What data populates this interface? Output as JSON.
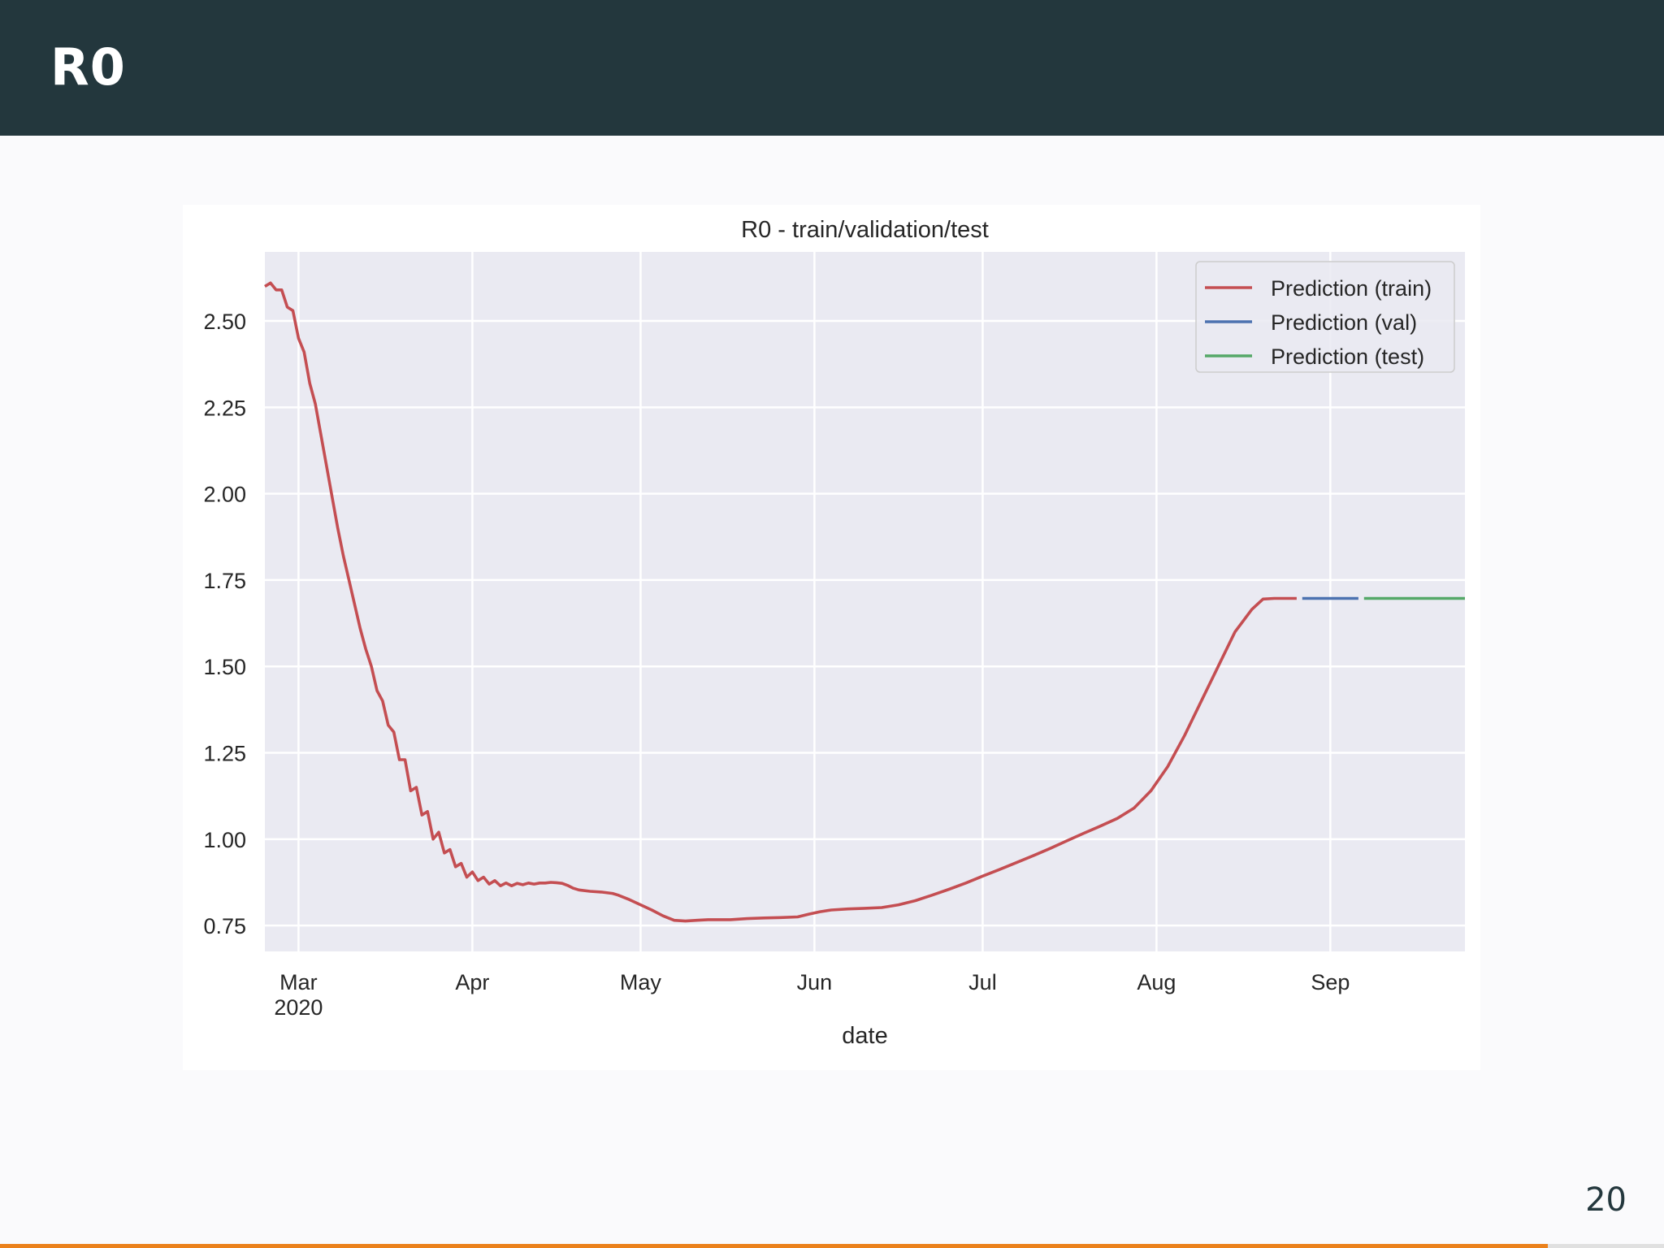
{
  "slide": {
    "title": "R0",
    "page_number": "20",
    "progress_fraction": 0.93
  },
  "colors": {
    "header_bg": "#23373d",
    "plot_bg": "#eaeaf2",
    "grid": "#ffffff",
    "train": "#c44e52",
    "val": "#4c72b0",
    "test": "#55a868",
    "accent": "#eb811b"
  },
  "chart_data": {
    "type": "line",
    "title": "R0 - train/validation/test",
    "xlabel": "date",
    "ylabel": "",
    "x_is_date": true,
    "xlim": [
      "2020-02-24",
      "2020-09-25"
    ],
    "ylim": [
      0.675,
      2.7
    ],
    "yticks": [
      0.75,
      1.0,
      1.25,
      1.5,
      1.75,
      2.0,
      2.25,
      2.5
    ],
    "ytick_labels": [
      "0.75",
      "1.00",
      "1.25",
      "1.50",
      "1.75",
      "2.00",
      "2.25",
      "2.50"
    ],
    "xticks": [
      {
        "date": "2020-03-01",
        "label": "Mar",
        "sublabel": "2020"
      },
      {
        "date": "2020-04-01",
        "label": "Apr",
        "sublabel": ""
      },
      {
        "date": "2020-05-01",
        "label": "May",
        "sublabel": ""
      },
      {
        "date": "2020-06-01",
        "label": "Jun",
        "sublabel": ""
      },
      {
        "date": "2020-07-01",
        "label": "Jul",
        "sublabel": ""
      },
      {
        "date": "2020-08-01",
        "label": "Aug",
        "sublabel": ""
      },
      {
        "date": "2020-09-01",
        "label": "Sep",
        "sublabel": ""
      }
    ],
    "grid": true,
    "legend_position": "top-right",
    "series": [
      {
        "name": "Prediction (train)",
        "color": "#c44e52",
        "points": [
          [
            "2020-02-24",
            2.6
          ],
          [
            "2020-02-25",
            2.61
          ],
          [
            "2020-02-26",
            2.59
          ],
          [
            "2020-02-27",
            2.59
          ],
          [
            "2020-02-28",
            2.54
          ],
          [
            "2020-02-29",
            2.53
          ],
          [
            "2020-03-01",
            2.45
          ],
          [
            "2020-03-02",
            2.41
          ],
          [
            "2020-03-03",
            2.32
          ],
          [
            "2020-03-04",
            2.26
          ],
          [
            "2020-03-05",
            2.17
          ],
          [
            "2020-03-06",
            2.08
          ],
          [
            "2020-03-07",
            1.99
          ],
          [
            "2020-03-08",
            1.9
          ],
          [
            "2020-03-09",
            1.82
          ],
          [
            "2020-03-10",
            1.75
          ],
          [
            "2020-03-11",
            1.68
          ],
          [
            "2020-03-12",
            1.61
          ],
          [
            "2020-03-13",
            1.55
          ],
          [
            "2020-03-14",
            1.5
          ],
          [
            "2020-03-15",
            1.43
          ],
          [
            "2020-03-16",
            1.4
          ],
          [
            "2020-03-17",
            1.33
          ],
          [
            "2020-03-18",
            1.31
          ],
          [
            "2020-03-19",
            1.23
          ],
          [
            "2020-03-20",
            1.23
          ],
          [
            "2020-03-21",
            1.14
          ],
          [
            "2020-03-22",
            1.15
          ],
          [
            "2020-03-23",
            1.07
          ],
          [
            "2020-03-24",
            1.08
          ],
          [
            "2020-03-25",
            1.0
          ],
          [
            "2020-03-26",
            1.02
          ],
          [
            "2020-03-27",
            0.96
          ],
          [
            "2020-03-28",
            0.97
          ],
          [
            "2020-03-29",
            0.92
          ],
          [
            "2020-03-30",
            0.93
          ],
          [
            "2020-03-31",
            0.89
          ],
          [
            "2020-04-01",
            0.905
          ],
          [
            "2020-04-02",
            0.88
          ],
          [
            "2020-04-03",
            0.89
          ],
          [
            "2020-04-04",
            0.87
          ],
          [
            "2020-04-05",
            0.88
          ],
          [
            "2020-04-06",
            0.865
          ],
          [
            "2020-04-07",
            0.873
          ],
          [
            "2020-04-08",
            0.865
          ],
          [
            "2020-04-09",
            0.872
          ],
          [
            "2020-04-10",
            0.868
          ],
          [
            "2020-04-11",
            0.873
          ],
          [
            "2020-04-12",
            0.87
          ],
          [
            "2020-04-13",
            0.873
          ],
          [
            "2020-04-14",
            0.873
          ],
          [
            "2020-04-15",
            0.875
          ],
          [
            "2020-04-16",
            0.874
          ],
          [
            "2020-04-17",
            0.872
          ],
          [
            "2020-04-18",
            0.866
          ],
          [
            "2020-04-19",
            0.858
          ],
          [
            "2020-04-20",
            0.853
          ],
          [
            "2020-04-22",
            0.849
          ],
          [
            "2020-04-24",
            0.847
          ],
          [
            "2020-04-26",
            0.843
          ],
          [
            "2020-04-27",
            0.838
          ],
          [
            "2020-04-29",
            0.825
          ],
          [
            "2020-05-01",
            0.81
          ],
          [
            "2020-05-03",
            0.795
          ],
          [
            "2020-05-05",
            0.778
          ],
          [
            "2020-05-07",
            0.765
          ],
          [
            "2020-05-09",
            0.763
          ],
          [
            "2020-05-11",
            0.765
          ],
          [
            "2020-05-13",
            0.767
          ],
          [
            "2020-05-15",
            0.767
          ],
          [
            "2020-05-17",
            0.767
          ],
          [
            "2020-05-20",
            0.77
          ],
          [
            "2020-05-23",
            0.772
          ],
          [
            "2020-05-26",
            0.773
          ],
          [
            "2020-05-29",
            0.775
          ],
          [
            "2020-05-31",
            0.783
          ],
          [
            "2020-06-02",
            0.79
          ],
          [
            "2020-06-04",
            0.795
          ],
          [
            "2020-06-07",
            0.798
          ],
          [
            "2020-06-10",
            0.8
          ],
          [
            "2020-06-13",
            0.802
          ],
          [
            "2020-06-16",
            0.81
          ],
          [
            "2020-06-19",
            0.822
          ],
          [
            "2020-06-22",
            0.838
          ],
          [
            "2020-06-25",
            0.855
          ],
          [
            "2020-06-28",
            0.873
          ],
          [
            "2020-07-01",
            0.893
          ],
          [
            "2020-07-04",
            0.912
          ],
          [
            "2020-07-07",
            0.932
          ],
          [
            "2020-07-10",
            0.952
          ],
          [
            "2020-07-13",
            0.973
          ],
          [
            "2020-07-16",
            0.995
          ],
          [
            "2020-07-19",
            1.017
          ],
          [
            "2020-07-22",
            1.038
          ],
          [
            "2020-07-25",
            1.06
          ],
          [
            "2020-07-28",
            1.09
          ],
          [
            "2020-07-31",
            1.14
          ],
          [
            "2020-08-03",
            1.21
          ],
          [
            "2020-08-06",
            1.3
          ],
          [
            "2020-08-09",
            1.4
          ],
          [
            "2020-08-12",
            1.5
          ],
          [
            "2020-08-15",
            1.6
          ],
          [
            "2020-08-18",
            1.665
          ],
          [
            "2020-08-20",
            1.695
          ],
          [
            "2020-08-22",
            1.697
          ],
          [
            "2020-08-25",
            1.697
          ],
          [
            "2020-08-26",
            1.697
          ]
        ]
      },
      {
        "name": "Prediction (val)",
        "color": "#4c72b0",
        "points": [
          [
            "2020-08-27",
            1.697
          ],
          [
            "2020-09-06",
            1.697
          ]
        ]
      },
      {
        "name": "Prediction (test)",
        "color": "#55a868",
        "points": [
          [
            "2020-09-07",
            1.697
          ],
          [
            "2020-09-25",
            1.697
          ]
        ]
      }
    ]
  }
}
